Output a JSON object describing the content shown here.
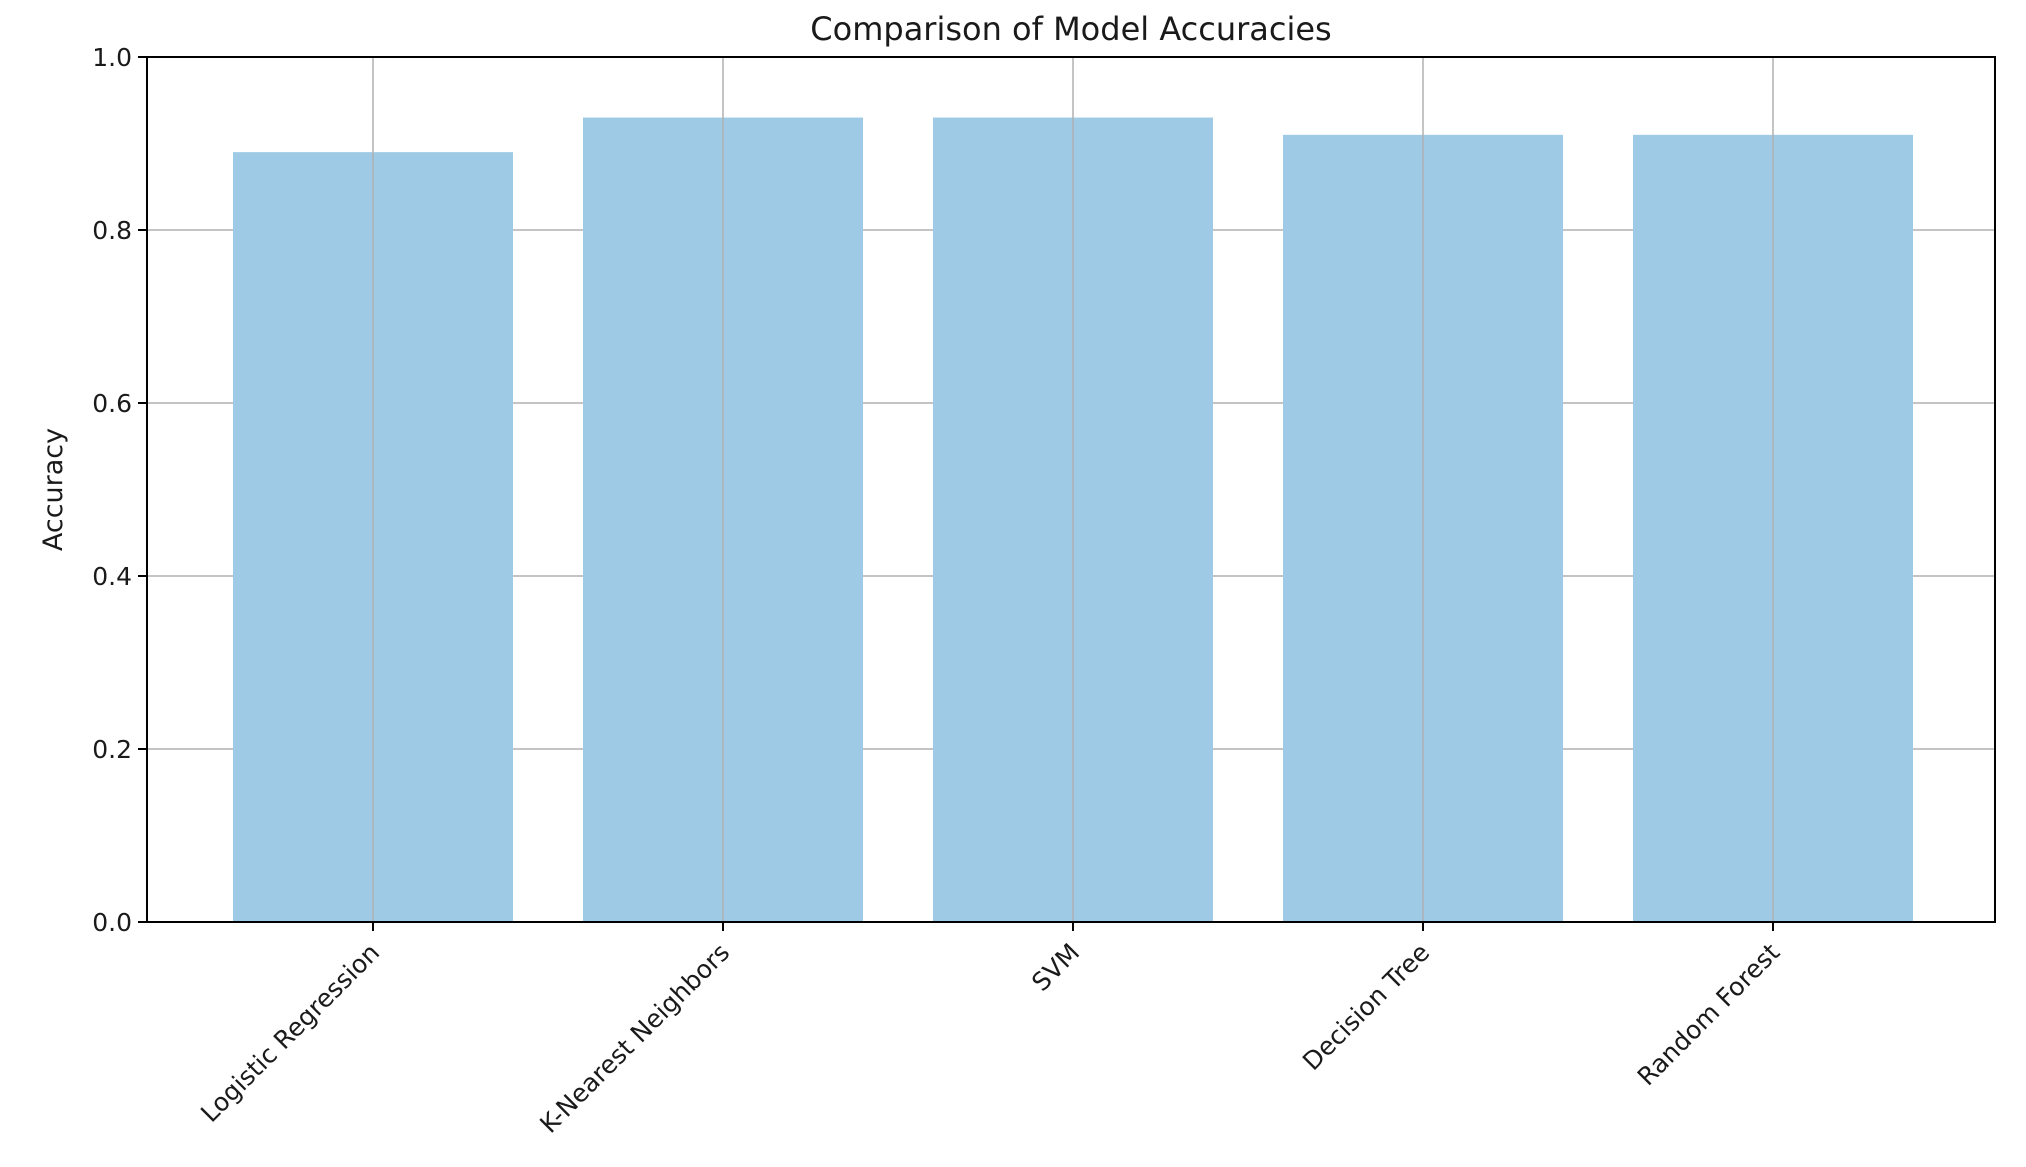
{
  "chart_data": {
    "type": "bar",
    "title": "Comparison of Model Accuracies",
    "xlabel": "",
    "ylabel": "Accuracy",
    "categories": [
      "Logistic Regression",
      "K-Nearest Neighbors",
      "SVM",
      "Decision Tree",
      "Random Forest"
    ],
    "values": [
      0.89,
      0.93,
      0.93,
      0.91,
      0.91
    ],
    "ylim": [
      0,
      1.0
    ],
    "yticks": [
      "0.0",
      "0.2",
      "0.4",
      "0.6",
      "0.8",
      "1.0"
    ],
    "grid": true,
    "bar_color": "#9ecae6",
    "grid_color": "#b0b0b0"
  }
}
